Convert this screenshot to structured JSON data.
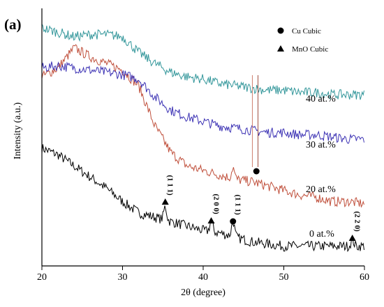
{
  "chart_data": {
    "type": "line",
    "panel_label": "(a)",
    "title": "",
    "xlabel": "2θ (degree)",
    "ylabel": "Intensity (a.u.)",
    "xlim": [
      20,
      60
    ],
    "x_ticks": [
      20,
      30,
      40,
      50,
      60
    ],
    "y_ticks_shown": false,
    "grid": false,
    "legend": {
      "placement": "top-right",
      "entries": [
        {
          "marker": "circle",
          "label": "Cu Cubic"
        },
        {
          "marker": "triangle",
          "label": "MnO Cubic"
        }
      ]
    },
    "series": [
      {
        "label": "0 at.%",
        "color": "#000000",
        "relative_intensity": [
          [
            20,
            0.46
          ],
          [
            22,
            0.43
          ],
          [
            24,
            0.38
          ],
          [
            26,
            0.33
          ],
          [
            28,
            0.28
          ],
          [
            30,
            0.22
          ],
          [
            32,
            0.17
          ],
          [
            34,
            0.15
          ],
          [
            36,
            0.13
          ],
          [
            38,
            0.11
          ],
          [
            40,
            0.09
          ],
          [
            42,
            0.08
          ],
          [
            44,
            0.06
          ],
          [
            46,
            0.04
          ],
          [
            48,
            0.03
          ],
          [
            50,
            0.02
          ],
          [
            52,
            0.02
          ],
          [
            54,
            0.02
          ],
          [
            56,
            0.02
          ],
          [
            58,
            0.02
          ],
          [
            60,
            0.02
          ]
        ]
      },
      {
        "label": "20 at.%",
        "color": "#c0503c",
        "relative_intensity": [
          [
            20,
            0.78
          ],
          [
            22,
            0.82
          ],
          [
            24,
            0.91
          ],
          [
            26,
            0.87
          ],
          [
            28,
            0.84
          ],
          [
            30,
            0.81
          ],
          [
            32,
            0.74
          ],
          [
            34,
            0.56
          ],
          [
            36,
            0.44
          ],
          [
            38,
            0.38
          ],
          [
            40,
            0.36
          ],
          [
            42,
            0.34
          ],
          [
            44,
            0.32
          ],
          [
            46,
            0.31
          ],
          [
            48,
            0.29
          ],
          [
            50,
            0.27
          ],
          [
            52,
            0.25
          ],
          [
            54,
            0.24
          ],
          [
            56,
            0.22
          ],
          [
            58,
            0.22
          ],
          [
            60,
            0.21
          ]
        ]
      },
      {
        "label": "30 at.%",
        "color": "#3c32b4",
        "relative_intensity": [
          [
            20,
            0.82
          ],
          [
            22,
            0.83
          ],
          [
            24,
            0.82
          ],
          [
            26,
            0.81
          ],
          [
            28,
            0.8
          ],
          [
            30,
            0.79
          ],
          [
            32,
            0.77
          ],
          [
            34,
            0.69
          ],
          [
            36,
            0.63
          ],
          [
            38,
            0.6
          ],
          [
            40,
            0.58
          ],
          [
            42,
            0.56
          ],
          [
            44,
            0.55
          ],
          [
            46,
            0.54
          ],
          [
            48,
            0.53
          ],
          [
            50,
            0.53
          ],
          [
            52,
            0.52
          ],
          [
            54,
            0.52
          ],
          [
            56,
            0.51
          ],
          [
            58,
            0.5
          ],
          [
            60,
            0.5
          ]
        ]
      },
      {
        "label": "40 at.%",
        "color": "#32969a",
        "relative_intensity": [
          [
            20,
            1.0
          ],
          [
            22,
            0.98
          ],
          [
            24,
            0.96
          ],
          [
            26,
            0.97
          ],
          [
            28,
            0.97
          ],
          [
            30,
            0.96
          ],
          [
            32,
            0.89
          ],
          [
            34,
            0.84
          ],
          [
            36,
            0.8
          ],
          [
            38,
            0.78
          ],
          [
            40,
            0.77
          ],
          [
            42,
            0.75
          ],
          [
            44,
            0.74
          ],
          [
            46,
            0.73
          ],
          [
            48,
            0.72
          ],
          [
            50,
            0.72
          ],
          [
            52,
            0.71
          ],
          [
            54,
            0.71
          ],
          [
            56,
            0.7
          ],
          [
            58,
            0.7
          ],
          [
            60,
            0.7
          ]
        ]
      }
    ],
    "annotations": [
      {
        "text": "(1 1 1)",
        "phase": "MnO Cubic",
        "marker": "triangle",
        "x": 35.3
      },
      {
        "text": "(2 0 0)",
        "phase": "MnO Cubic",
        "marker": "triangle",
        "x": 41.0
      },
      {
        "text": "(1 1 1)",
        "phase": "Cu Cubic",
        "marker": "circle",
        "x": 43.7
      },
      {
        "text": "",
        "phase": "Cu Cubic",
        "marker": "circle",
        "x": 46.6
      },
      {
        "text": "(2 2 0)",
        "phase": "MnO Cubic",
        "marker": "triangle",
        "x": 58.5
      }
    ]
  }
}
